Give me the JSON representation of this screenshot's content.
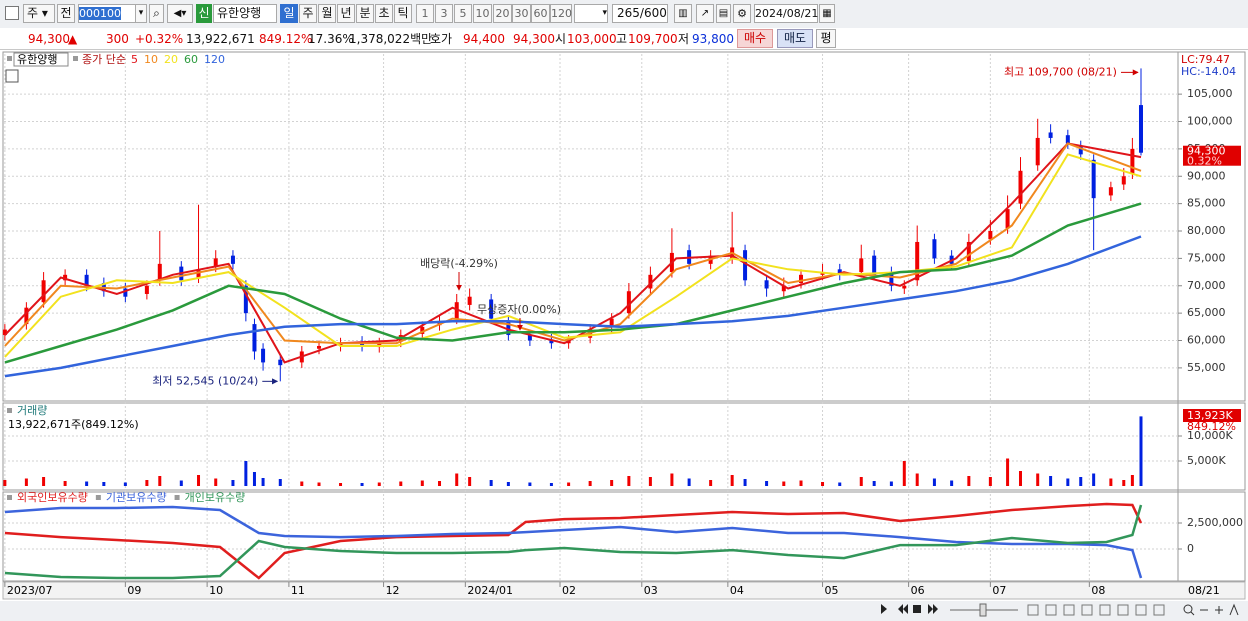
{
  "toolbar": {
    "market": "주",
    "prev": "전",
    "code": "000100",
    "badge": "신",
    "name": "유한양행",
    "periods": [
      "일",
      "주",
      "월",
      "년",
      "분",
      "초",
      "틱"
    ],
    "intervals": [
      "1",
      "3",
      "5",
      "10",
      "20",
      "30",
      "60",
      "120"
    ],
    "count": "265",
    "max_count": "/600",
    "date": "2024/08/21"
  },
  "info_bar": {
    "price": "94,300",
    "arrow": "▲",
    "change": "300",
    "change_pct": "+0.32%",
    "volume": "13,922,671",
    "volume_ratio": "849.12%",
    "turnover": "17.36%",
    "amount": "1,378,022백만",
    "bid_label": "호가",
    "ask": "94,400",
    "bid": "94,300",
    "open_label": "시",
    "open": "103,000",
    "high_label": "고",
    "high": "109,700",
    "low_label": "저",
    "low": "93,800",
    "buy": "매수",
    "sell": "매도",
    "avg": "평"
  },
  "chart_data": [
    {
      "type": "candlestick",
      "title": "유한양행",
      "ma_label": "종가 단순",
      "x": [
        0,
        5,
        9,
        14,
        19,
        23,
        28,
        33,
        36,
        41,
        45,
        49,
        53,
        56,
        58,
        60,
        64,
        69,
        73,
        78,
        83,
        87,
        92,
        97,
        101,
        105,
        108,
        113,
        117,
        122,
        127,
        131,
        136,
        141,
        145,
        150,
        155,
        159,
        164,
        169,
        172,
        177,
        181,
        185,
        190,
        194,
        199,
        202,
        206,
        209,
        212,
        216,
        220,
        224,
        229,
        233,
        236,
        240,
        243,
        247,
        250,
        253,
        257,
        260,
        262,
        264
      ],
      "open": [
        61000,
        63000,
        67000,
        71000,
        72000,
        70500,
        69500,
        68500,
        71000,
        73500,
        71500,
        73500,
        75500,
        70000,
        63000,
        58500,
        56500,
        56000,
        58500,
        59000,
        59800,
        58800,
        59800,
        61200,
        62800,
        64000,
        66500,
        67500,
        63500,
        61000,
        60200,
        59500,
        60500,
        62500,
        65000,
        69500,
        72500,
        76500,
        74000,
        75000,
        76500,
        71000,
        69000,
        70500,
        72000,
        73000,
        72500,
        75500,
        72500,
        69500,
        71000,
        78500,
        75500,
        74500,
        78500,
        80500,
        85000,
        92000,
        98000,
        97500,
        95500,
        93000,
        86500,
        88500,
        90500,
        103000
      ],
      "high": [
        63000,
        67000,
        72500,
        73000,
        73000,
        71500,
        70500,
        71000,
        80000,
        74500,
        84800,
        76500,
        76500,
        71000,
        64000,
        59500,
        57500,
        59000,
        60000,
        60500,
        60800,
        60500,
        62000,
        63500,
        64500,
        68500,
        69500,
        68500,
        64500,
        62000,
        61200,
        61000,
        63000,
        65000,
        70500,
        73500,
        80500,
        77500,
        76500,
        83500,
        77500,
        72000,
        71500,
        73000,
        74000,
        74000,
        77500,
        76500,
        73500,
        71000,
        81000,
        79500,
        76500,
        79500,
        82000,
        86500,
        93500,
        100500,
        99500,
        98500,
        96500,
        94000,
        89000,
        91500,
        97000,
        109700
      ],
      "low": [
        60000,
        62000,
        66000,
        70000,
        69000,
        68000,
        67000,
        67500,
        70000,
        70000,
        70500,
        72500,
        73000,
        63500,
        56500,
        54500,
        52545,
        55000,
        57500,
        58000,
        58000,
        57800,
        58800,
        60200,
        61800,
        63000,
        65500,
        63000,
        60000,
        59000,
        58500,
        58500,
        59500,
        61500,
        64000,
        68500,
        71500,
        73000,
        73000,
        74000,
        70000,
        68000,
        68000,
        69500,
        71000,
        71000,
        71500,
        71000,
        69000,
        68500,
        70000,
        74000,
        73000,
        73500,
        77500,
        79500,
        84000,
        91000,
        96000,
        95000,
        93000,
        76500,
        85500,
        87500,
        89500,
        93800
      ],
      "close": [
        62000,
        66000,
        71000,
        72000,
        70000,
        69000,
        68000,
        70000,
        74000,
        71000,
        73000,
        75000,
        74000,
        65000,
        58000,
        56000,
        55500,
        58000,
        59000,
        59500,
        59000,
        59500,
        61000,
        62500,
        63500,
        67000,
        68000,
        64000,
        61000,
        60000,
        59500,
        60000,
        62000,
        64000,
        69000,
        72000,
        76000,
        74000,
        75500,
        77000,
        71000,
        69500,
        70000,
        72000,
        72500,
        72000,
        75000,
        72000,
        70000,
        70000,
        78000,
        75000,
        74000,
        78000,
        80000,
        84000,
        91000,
        97000,
        97000,
        96000,
        94000,
        86000,
        88000,
        90000,
        95000,
        94300
      ],
      "up_color": "#f00000",
      "down_color": "#0020e0",
      "series": [
        {
          "name": "5",
          "color": "#e0141a",
          "x": [
            0,
            13,
            26,
            39,
            52,
            65,
            78,
            91,
            104,
            117,
            130,
            143,
            156,
            169,
            182,
            195,
            208,
            221,
            234,
            247,
            264
          ],
          "values": [
            61000,
            71500,
            68500,
            72000,
            74000,
            56000,
            59500,
            60000,
            66000,
            62000,
            59500,
            65000,
            75000,
            75500,
            69500,
            72500,
            70000,
            75000,
            85000,
            96000,
            93500
          ]
        },
        {
          "name": "10",
          "color": "#f0881e",
          "x": [
            0,
            13,
            26,
            39,
            52,
            65,
            78,
            91,
            104,
            117,
            130,
            143,
            156,
            169,
            182,
            195,
            208,
            221,
            234,
            247,
            264
          ],
          "values": [
            59000,
            70000,
            69500,
            71500,
            73500,
            60000,
            59500,
            59500,
            64000,
            63000,
            60000,
            63000,
            73000,
            76000,
            70500,
            72300,
            71500,
            74000,
            81000,
            96000,
            91000
          ]
        },
        {
          "name": "20",
          "color": "#f2e21e",
          "x": [
            0,
            13,
            26,
            39,
            52,
            65,
            78,
            91,
            104,
            117,
            130,
            143,
            156,
            169,
            182,
            195,
            208,
            221,
            234,
            247,
            264
          ],
          "values": [
            57000,
            68000,
            71000,
            70500,
            72500,
            66000,
            59000,
            59000,
            62000,
            64500,
            60500,
            61500,
            68000,
            75000,
            73000,
            72000,
            72500,
            73500,
            77000,
            94000,
            90000
          ]
        },
        {
          "name": "60",
          "color": "#2a9a3c",
          "x": [
            0,
            13,
            26,
            39,
            52,
            65,
            78,
            91,
            104,
            117,
            130,
            143,
            156,
            169,
            182,
            195,
            208,
            221,
            234,
            247,
            264
          ],
          "values": [
            56000,
            59000,
            62000,
            65500,
            70000,
            68500,
            64000,
            60500,
            60000,
            61500,
            61500,
            62000,
            63000,
            65500,
            68000,
            70500,
            72500,
            73000,
            75500,
            81000,
            85000
          ]
        },
        {
          "name": "120",
          "color": "#3264dc",
          "x": [
            0,
            13,
            26,
            39,
            52,
            65,
            78,
            91,
            104,
            117,
            130,
            143,
            156,
            169,
            182,
            195,
            208,
            221,
            234,
            247,
            264
          ],
          "values": [
            53500,
            55000,
            57000,
            59000,
            61000,
            62500,
            63000,
            63000,
            63500,
            63500,
            63000,
            62500,
            63000,
            63500,
            64500,
            66000,
            67500,
            69000,
            71000,
            74000,
            79000
          ]
        }
      ],
      "xlim": [
        -0.2,
        272.6
      ],
      "xticks": [
        {
          "value": 0,
          "label": "2023/07"
        },
        {
          "value": 28,
          "label": "09"
        },
        {
          "value": 47,
          "label": "10"
        },
        {
          "value": 66,
          "label": "11"
        },
        {
          "value": 88,
          "label": "12"
        },
        {
          "value": 107,
          "label": "2024/01"
        },
        {
          "value": 129,
          "label": "02"
        },
        {
          "value": 148,
          "label": "03"
        },
        {
          "value": 168,
          "label": "04"
        },
        {
          "value": 190,
          "label": "05"
        },
        {
          "value": 210,
          "label": "06"
        },
        {
          "value": 229,
          "label": "07"
        },
        {
          "value": 252,
          "label": "08"
        }
      ],
      "ylim": [
        49500,
        111600
      ],
      "yticks": [
        {
          "value": 55000,
          "label": "55,000"
        },
        {
          "value": 60000,
          "label": "60,000"
        },
        {
          "value": 65000,
          "label": "65,000"
        },
        {
          "value": 70000,
          "label": "70,000"
        },
        {
          "value": 75000,
          "label": "75,000"
        },
        {
          "value": 80000,
          "label": "80,000"
        },
        {
          "value": 85000,
          "label": "85,000"
        },
        {
          "value": 90000,
          "label": "90,000"
        },
        {
          "value": 95000,
          "label": "95,000"
        },
        {
          "value": 100000,
          "label": "100,000"
        },
        {
          "value": 105000,
          "label": "105,000"
        }
      ],
      "grid": true,
      "annotations": {
        "high": "최고 109,700 (08/21)",
        "low": "최저 52,545 (10/24)",
        "dividend": "배당락(-4.29%)",
        "bonus": "무상증자(0.00%)"
      },
      "right_labels": {
        "lc": "LC:79.47",
        "hc": "HC:-14.04"
      },
      "last_price_label": "94,300",
      "last_change_label": "0.32%",
      "last_date": "08/21"
    },
    {
      "type": "bar",
      "title": "거래량",
      "subtitle": "13,922,671주(849.12%)",
      "x": [
        0,
        5,
        9,
        14,
        19,
        23,
        28,
        33,
        36,
        41,
        45,
        49,
        53,
        56,
        58,
        60,
        64,
        69,
        73,
        78,
        83,
        87,
        92,
        97,
        101,
        105,
        108,
        113,
        117,
        122,
        127,
        131,
        136,
        141,
        145,
        150,
        155,
        159,
        164,
        169,
        172,
        177,
        181,
        185,
        190,
        194,
        199,
        202,
        206,
        209,
        212,
        216,
        220,
        224,
        229,
        233,
        236,
        240,
        243,
        247,
        250,
        253,
        257,
        260,
        262,
        264
      ],
      "values": [
        1200000,
        1500000,
        1800000,
        1000000,
        900000,
        800000,
        700000,
        1200000,
        2000000,
        1100000,
        2200000,
        1500000,
        1200000,
        5000000,
        2800000,
        1600000,
        1400000,
        900000,
        700000,
        600000,
        600000,
        700000,
        900000,
        1100000,
        1000000,
        2500000,
        1800000,
        1200000,
        800000,
        700000,
        600000,
        700000,
        1000000,
        1200000,
        2000000,
        1800000,
        2500000,
        1500000,
        1200000,
        2200000,
        1400000,
        1000000,
        900000,
        1100000,
        800000,
        700000,
        1800000,
        1000000,
        900000,
        5000000,
        2500000,
        1500000,
        1100000,
        2000000,
        1800000,
        5500000,
        3000000,
        2500000,
        2000000,
        1500000,
        1800000,
        2500000,
        1500000,
        1200000,
        2200000,
        13922671
      ],
      "last_value_label": "13,923K",
      "last_ratio_label": "849.12%",
      "ylim": [
        0,
        16000000
      ],
      "yticks": [
        {
          "value": 5000000,
          "label": "5,000K"
        },
        {
          "value": 10000000,
          "label": "10,000K"
        }
      ]
    },
    {
      "type": "line",
      "x": [
        0,
        13,
        26,
        39,
        50,
        59,
        65,
        78,
        91,
        104,
        117,
        121,
        130,
        143,
        156,
        169,
        182,
        195,
        208,
        221,
        234,
        247,
        256,
        262,
        264
      ],
      "series": [
        {
          "name": "외국인보유수량",
          "color": "#e01e1e",
          "values": [
            1540000,
            1150000,
            870000,
            580000,
            190000,
            -2790000,
            -380000,
            770000,
            1150000,
            1250000,
            1350000,
            2600000,
            2880000,
            2980000,
            3270000,
            3560000,
            3370000,
            3460000,
            2690000,
            3170000,
            3750000,
            4130000,
            4330000,
            4230000,
            2500000
          ]
        },
        {
          "name": "기관보유수량",
          "color": "#3c64dc",
          "values": [
            3560000,
            3940000,
            3940000,
            4040000,
            3750000,
            1540000,
            1250000,
            1150000,
            1250000,
            1440000,
            1540000,
            1630000,
            1830000,
            2120000,
            1630000,
            2020000,
            1540000,
            1540000,
            1150000,
            670000,
            480000,
            480000,
            380000,
            -100000,
            -2790000
          ]
        },
        {
          "name": "개인보유수량",
          "color": "#32965a",
          "values": [
            -2310000,
            -2690000,
            -2790000,
            -2790000,
            -2600000,
            770000,
            190000,
            -190000,
            -380000,
            -380000,
            -290000,
            -100000,
            100000,
            -290000,
            -380000,
            -100000,
            -580000,
            -870000,
            380000,
            380000,
            1060000,
            580000,
            670000,
            1350000,
            4230000
          ]
        }
      ],
      "ylim": [
        -2980000,
        5290000
      ],
      "yticks": [
        {
          "value": 2500000,
          "label": "2,500,000"
        },
        0
      ]
    }
  ]
}
